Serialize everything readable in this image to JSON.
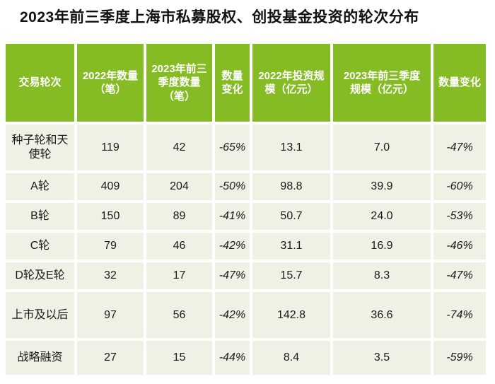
{
  "title": "2023年前三季度上海市私募股权、创投基金投资的轮次分布",
  "colors": {
    "header_bg": "#85bb23",
    "header_text": "#ffffff",
    "cell_bg": "#edf2e5",
    "cell_text": "#1a1a1a",
    "page_bg": "#ffffff"
  },
  "header_display": [
    "交易轮次",
    "2022年数量\n（笔）",
    "2023年前三\n季度数量\n（笔）",
    "数量\n变化",
    "2022年投资规\n模（亿元）",
    "2023年前三季度\n规模（亿元）",
    "数量变化"
  ],
  "chart_data": {
    "type": "table",
    "title": "2023年前三季度上海市私募股权、创投基金投资的轮次分布",
    "columns": [
      "交易轮次",
      "2022年数量（笔）",
      "2023年前三季度数量（笔）",
      "数量变化",
      "2022年投资规模（亿元）",
      "2023年前三季度规模（亿元）",
      "数量变化"
    ],
    "rows": [
      [
        "种子轮和天使轮",
        "119",
        "42",
        "-65%",
        "13.1",
        "7.0",
        "-47%"
      ],
      [
        "A轮",
        "409",
        "204",
        "-50%",
        "98.8",
        "39.9",
        "-60%"
      ],
      [
        "B轮",
        "150",
        "89",
        "-41%",
        "50.7",
        "24.0",
        "-53%"
      ],
      [
        "C轮",
        "79",
        "46",
        "-42%",
        "31.1",
        "16.9",
        "-46%"
      ],
      [
        "D轮及E轮",
        "32",
        "17",
        "-47%",
        "15.7",
        "8.3",
        "-47%"
      ],
      [
        "上市及以后",
        "97",
        "56",
        "-42%",
        "142.8",
        "36.6",
        "-74%"
      ],
      [
        "战略融资",
        "27",
        "15",
        "-44%",
        "8.4",
        "3.5",
        "-59%"
      ]
    ]
  }
}
